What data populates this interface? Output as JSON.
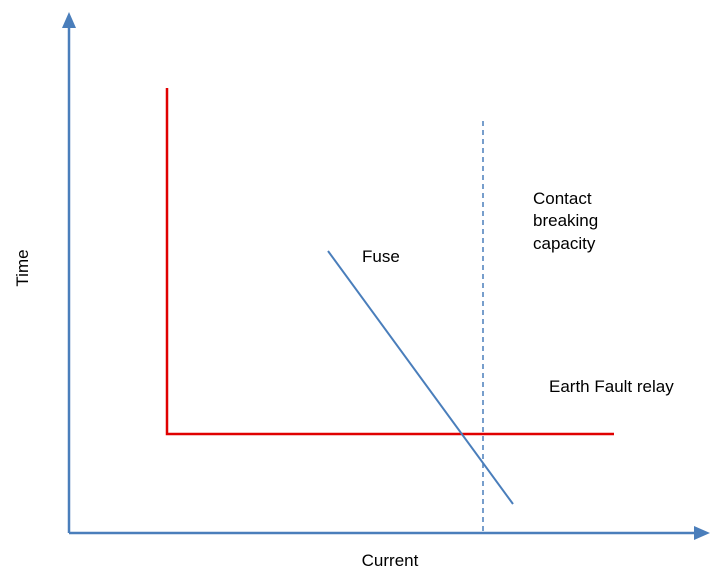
{
  "axes": {
    "x_label": "Current",
    "y_label": "Time"
  },
  "curves": {
    "fuse_label": "Fuse",
    "earth_fault_relay_label": "Earth Fault relay",
    "contact_breaking_capacity_lines": [
      "Contact",
      "breaking",
      "capacity"
    ]
  },
  "colors": {
    "axis": "#4a7ebb",
    "relay_curve": "#e00000",
    "fuse_curve": "#4a7ebb",
    "breaking_capacity_line": "#4a7ebb",
    "text": "#000000"
  }
}
